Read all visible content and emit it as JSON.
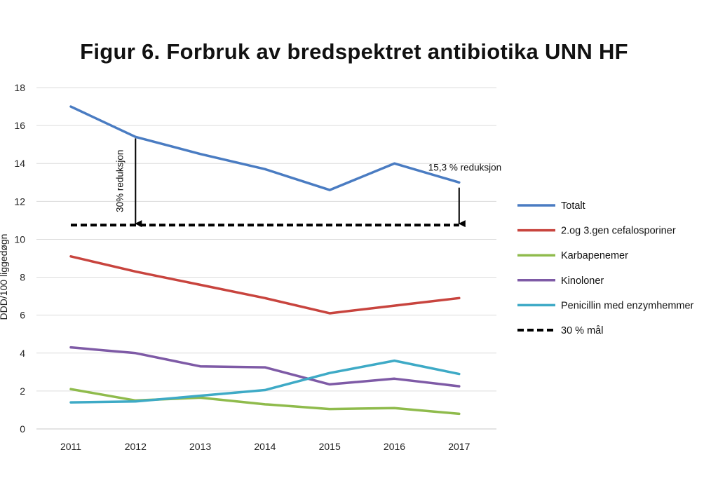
{
  "chart_data": {
    "type": "line",
    "title": "Figur 6. Forbruk av bredspektret antibiotika UNN HF",
    "ylabel": "DDD/100 liggedøgn",
    "xlabel": "",
    "x": [
      "2011",
      "2012",
      "2013",
      "2014",
      "2015",
      "2016",
      "2017"
    ],
    "ylim": [
      0,
      18
    ],
    "yticks": [
      "0",
      "2",
      "4",
      "6",
      "8",
      "10",
      "12",
      "14",
      "16",
      "18"
    ],
    "grid": true,
    "legend_position": "right",
    "series": [
      {
        "name": "Totalt",
        "color": "#4a7cc2",
        "dash": false,
        "values": [
          17.0,
          15.4,
          14.5,
          13.7,
          12.6,
          14.0,
          13.0
        ]
      },
      {
        "name": "2.og 3.gen cefalosporiner",
        "color": "#c8443e",
        "dash": false,
        "values": [
          9.1,
          8.3,
          7.6,
          6.9,
          6.1,
          6.5,
          6.9
        ]
      },
      {
        "name": "Karbapenemer",
        "color": "#8fbb4c",
        "dash": false,
        "values": [
          2.1,
          1.5,
          1.65,
          1.3,
          1.05,
          1.1,
          0.8
        ]
      },
      {
        "name": "Kinoloner",
        "color": "#7e5aa6",
        "dash": false,
        "values": [
          4.3,
          4.0,
          3.3,
          3.25,
          2.35,
          2.65,
          2.25
        ]
      },
      {
        "name": "Penicillin med enzymhemmer",
        "color": "#3eaac6",
        "dash": false,
        "values": [
          1.4,
          1.45,
          1.75,
          2.05,
          2.95,
          3.6,
          2.9
        ]
      },
      {
        "name": "30 % mål",
        "color": "#000000",
        "dash": true,
        "values": [
          10.75,
          10.75,
          10.75,
          10.75,
          10.75,
          10.75,
          10.75
        ]
      }
    ],
    "annotations": [
      {
        "id": "ann-30",
        "text": "30% reduksjon",
        "x": "2012",
        "from": 15.4,
        "to": 10.75
      },
      {
        "id": "ann-153",
        "text": "15,3 % reduksjon",
        "x": "2017",
        "from": 12.8,
        "to": 10.75
      }
    ]
  }
}
